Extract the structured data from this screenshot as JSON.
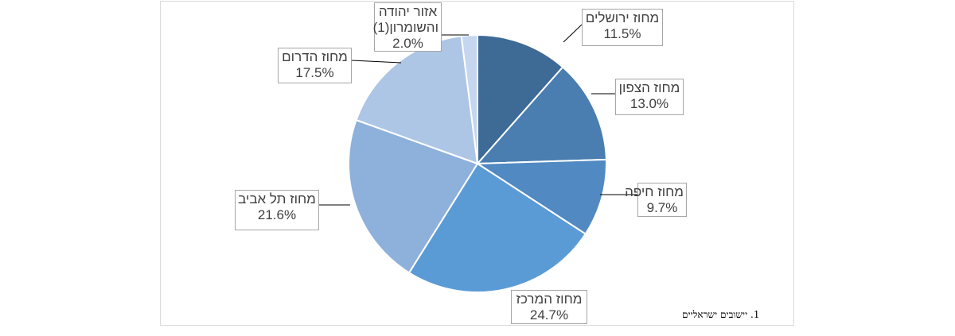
{
  "chart_data": {
    "type": "pie",
    "title": "",
    "slices": [
      {
        "label": "מחוז ירושלים",
        "value": 11.5,
        "display": "11.5%",
        "color": "#3e6a96"
      },
      {
        "label": "מחוז הצפון",
        "value": 13.0,
        "display": "13.0%",
        "color": "#4a7eb0"
      },
      {
        "label": "מחוז חיפה",
        "value": 9.7,
        "display": "9.7%",
        "color": "#5189c2"
      },
      {
        "label": "מחוז המרכז",
        "value": 24.7,
        "display": "24.7%",
        "color": "#5b9bd5"
      },
      {
        "label": "מחוז תל אביב",
        "value": 21.6,
        "display": "21.6%",
        "color": "#8eb1dc"
      },
      {
        "label": "מחוז הדרום",
        "value": 17.5,
        "display": "17.5%",
        "color": "#aec6e6"
      },
      {
        "label": "אזור יהודה והשומרון(1)",
        "label_lines": [
          "אזור יהודה",
          "והשומרון(1)"
        ],
        "value": 2.0,
        "display": "2.0%",
        "color": "#c5d6ee"
      }
    ],
    "start_angle_deg": 0,
    "direction": "clockwise",
    "legend": "none"
  },
  "footnote": "1. יישובים ישראליים"
}
